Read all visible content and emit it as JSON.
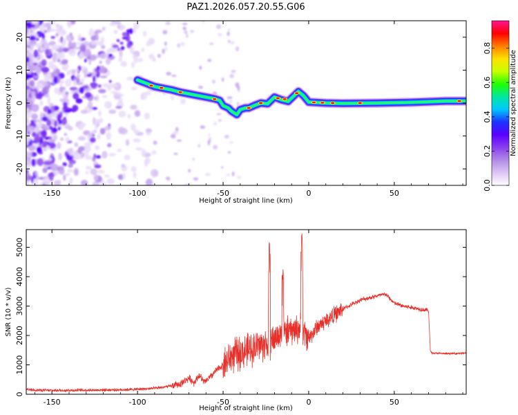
{
  "figure": {
    "title": "PAZ1.2026.057.20.55.G06"
  },
  "chart_data": [
    {
      "type": "heatmap",
      "xlabel": "Height of straight line (km)",
      "ylabel": "Frequency (Hz)",
      "xlim": [
        -165,
        92
      ],
      "ylim": [
        -25,
        25
      ],
      "xticks": [
        -150,
        -100,
        -50,
        0,
        50
      ],
      "yticks": [
        -20,
        -10,
        0,
        10,
        20
      ],
      "ridge": [
        [
          -100,
          7
        ],
        [
          -95,
          6
        ],
        [
          -90,
          5
        ],
        [
          -85,
          4.5
        ],
        [
          -80,
          4
        ],
        [
          -75,
          3.3
        ],
        [
          -70,
          2.8
        ],
        [
          -65,
          2.3
        ],
        [
          -60,
          1.8
        ],
        [
          -55,
          1.3
        ],
        [
          -52,
          0.8
        ],
        [
          -50,
          -0.8
        ],
        [
          -47,
          -1.5
        ],
        [
          -45,
          -2.5
        ],
        [
          -42,
          -3.5
        ],
        [
          -40,
          -2
        ],
        [
          -37,
          -1.5
        ],
        [
          -35,
          -1.5
        ],
        [
          -32,
          -0.8
        ],
        [
          -28,
          0
        ],
        [
          -24,
          -0.2
        ],
        [
          -20,
          1.8
        ],
        [
          -16,
          1
        ],
        [
          -12,
          0.5
        ],
        [
          -8,
          2.5
        ],
        [
          -6,
          3.5
        ],
        [
          -3,
          2.2
        ],
        [
          0,
          0.3
        ],
        [
          10,
          0
        ],
        [
          20,
          -0.1
        ],
        [
          40,
          0
        ],
        [
          60,
          0.2
        ],
        [
          80,
          0.6
        ],
        [
          92,
          0.6
        ]
      ],
      "colorbar": {
        "label": "Normalized spectral amplitude",
        "range": [
          0,
          0.96
        ],
        "ticks": [
          "0.0",
          "0.2",
          "0.4",
          "0.6",
          "0.8"
        ],
        "tick_values": [
          0,
          0.2,
          0.4,
          0.6,
          0.8
        ],
        "colors": [
          "#ffffff",
          "#dcc4f4",
          "#b08ae6",
          "#8a3ef0",
          "#5a00ff",
          "#1a33ff",
          "#00c8ff",
          "#00e8a0",
          "#20ff00",
          "#c8ff00",
          "#ffe000",
          "#ff8000",
          "#ff0000",
          "#ff1493"
        ]
      }
    },
    {
      "type": "line",
      "xlabel": "Height of straight line (km)",
      "ylabel": "SNR (10 * v/v)",
      "xlim": [
        -165,
        92
      ],
      "ylim": [
        0,
        5600
      ],
      "xticks": [
        -150,
        -100,
        -50,
        0,
        50
      ],
      "yticks": [
        0,
        1000,
        2000,
        3000,
        4000,
        5000
      ],
      "series": [
        {
          "color": "#e8302a",
          "x": [
            -165,
            -150,
            -130,
            -110,
            -100,
            -90,
            -80,
            -75,
            -70,
            -67,
            -64,
            -61,
            -58,
            -55,
            -50,
            -45,
            -40,
            -35,
            -30,
            -25,
            -22,
            -20,
            -15,
            -10,
            -5,
            0,
            5,
            10,
            20,
            30,
            40,
            45,
            50,
            55,
            60,
            65,
            70,
            71,
            72,
            80,
            92
          ],
          "y": [
            150,
            130,
            140,
            150,
            170,
            200,
            280,
            350,
            550,
            400,
            650,
            400,
            550,
            750,
            1000,
            1300,
            1400,
            1500,
            1650,
            1700,
            1800,
            1900,
            2100,
            2150,
            2250,
            1900,
            2300,
            2500,
            2900,
            3200,
            3350,
            3400,
            3100,
            3000,
            2950,
            2900,
            2850,
            1500,
            1400,
            1380,
            1400
          ]
        }
      ],
      "spikes": [
        {
          "x": -23,
          "y": 5200
        },
        {
          "x": -15,
          "y": 4250
        },
        {
          "x": -4,
          "y": 5600
        }
      ]
    }
  ]
}
